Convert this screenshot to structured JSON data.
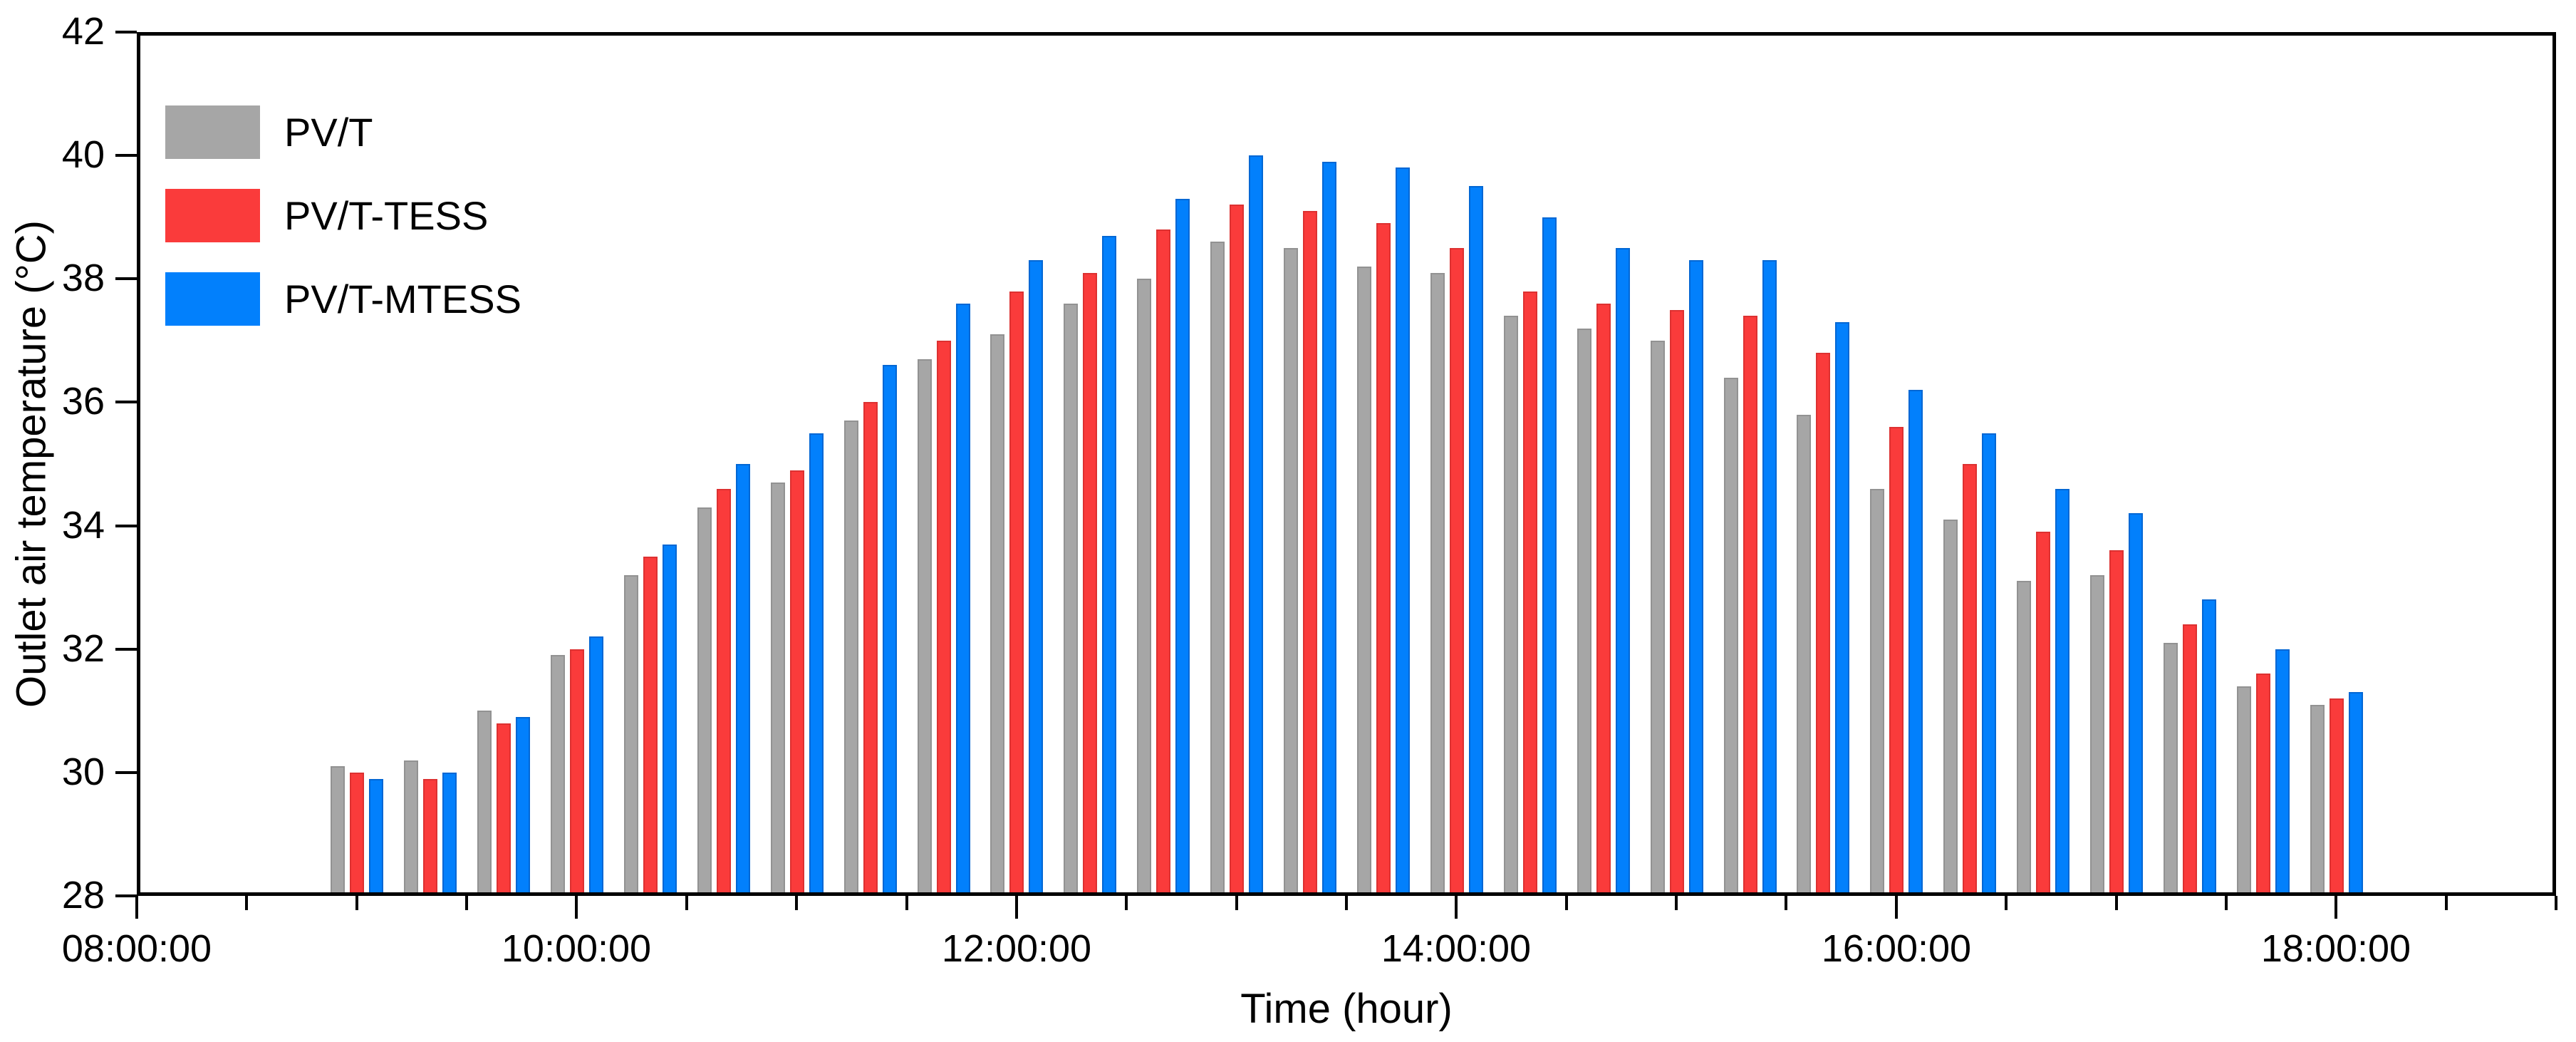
{
  "chart_data": {
    "type": "bar",
    "title": "",
    "xlabel": "Time (hour)",
    "ylabel": "Outlet air temperature (°C)",
    "ylim": [
      28,
      42
    ],
    "yticks": [
      "28",
      "30",
      "32",
      "34",
      "36",
      "38",
      "40",
      "42"
    ],
    "x_axis": {
      "domain_start": "08:00:00",
      "domain_end": "19:00:00",
      "major_tick_labels": [
        "08:00:00",
        "10:00:00",
        "12:00:00",
        "14:00:00",
        "16:00:00",
        "18:00:00"
      ],
      "minor_tick_minutes": 30
    },
    "legend_position": "top-left-inside",
    "grid": false,
    "categories": [
      "09:00:00",
      "09:20:00",
      "09:40:00",
      "10:00:00",
      "10:20:00",
      "10:40:00",
      "11:00:00",
      "11:20:00",
      "11:40:00",
      "12:00:00",
      "12:20:00",
      "12:40:00",
      "13:00:00",
      "13:20:00",
      "13:40:00",
      "14:00:00",
      "14:20:00",
      "14:40:00",
      "15:00:00",
      "15:20:00",
      "15:40:00",
      "16:00:00",
      "16:20:00",
      "16:40:00",
      "17:00:00",
      "17:20:00",
      "17:40:00",
      "18:00:00"
    ],
    "series": [
      {
        "name": "PV/T",
        "color": "#a6a6a6",
        "edge_color": "#929292",
        "values": [
          30.1,
          30.2,
          31.0,
          31.9,
          33.2,
          34.3,
          34.7,
          35.7,
          36.7,
          37.1,
          37.6,
          38.0,
          38.6,
          38.5,
          38.2,
          38.1,
          37.4,
          37.2,
          37.0,
          36.4,
          35.8,
          34.6,
          34.1,
          33.1,
          33.2,
          32.1,
          31.4,
          31.1
        ]
      },
      {
        "name": "PV/T-TESS",
        "color": "#fa3b3b",
        "edge_color": "#dd3131",
        "values": [
          30.0,
          29.9,
          30.8,
          32.0,
          33.5,
          34.6,
          34.9,
          36.0,
          37.0,
          37.8,
          38.1,
          38.8,
          39.2,
          39.1,
          38.9,
          38.5,
          37.8,
          37.6,
          37.5,
          37.4,
          36.8,
          35.6,
          35.0,
          33.9,
          33.6,
          32.4,
          31.6,
          31.2
        ]
      },
      {
        "name": "PV/T-MTESS",
        "color": "#0280fc",
        "edge_color": "#0267d4",
        "values": [
          29.9,
          30.0,
          30.9,
          32.2,
          33.7,
          35.0,
          35.5,
          36.6,
          37.6,
          38.3,
          38.7,
          39.3,
          40.0,
          39.9,
          39.8,
          39.5,
          39.0,
          38.5,
          38.3,
          38.3,
          37.3,
          36.2,
          35.5,
          34.6,
          34.2,
          32.8,
          32.0,
          31.3
        ]
      }
    ]
  }
}
